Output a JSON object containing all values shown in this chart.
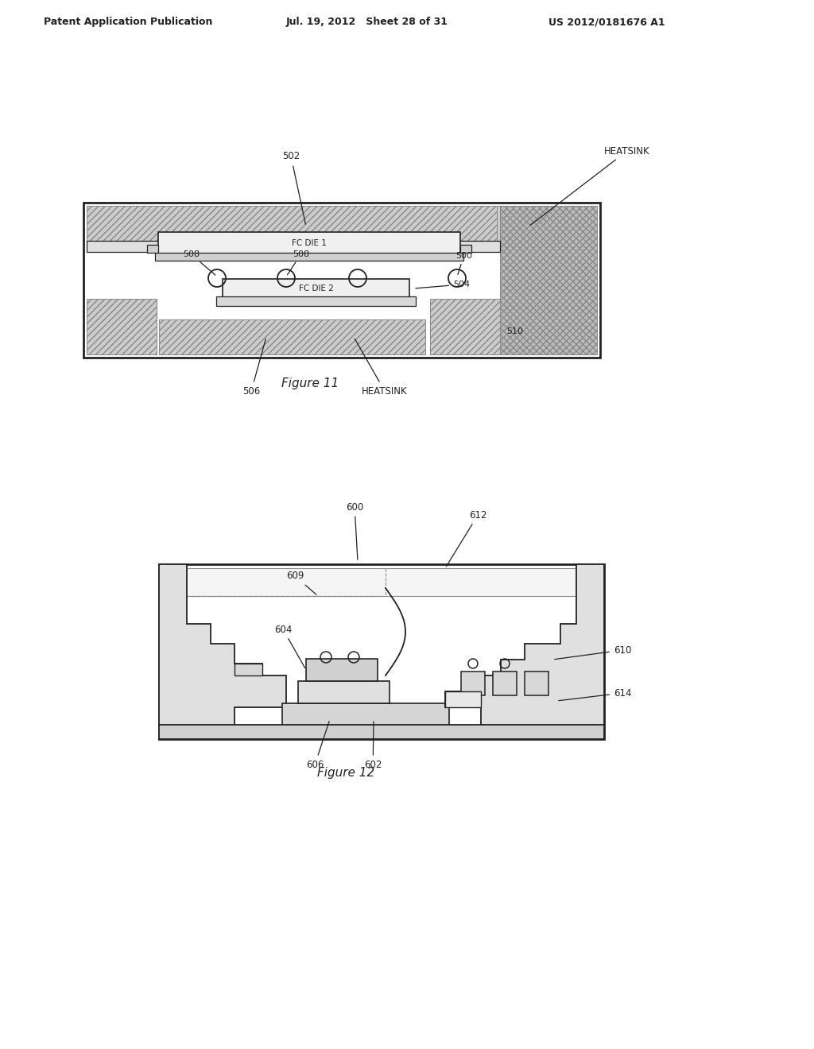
{
  "page_header_left": "Patent Application Publication",
  "page_header_mid": "Jul. 19, 2012   Sheet 28 of 31",
  "page_header_right": "US 2012/0181676 A1",
  "fig11_caption": "Figure 11",
  "fig12_caption": "Figure 12",
  "bg_color": "#ffffff",
  "lc": "#222222",
  "hc": "#888888",
  "fc_light": "#e8e8e8",
  "fc_mid": "#cccccc",
  "fc_dark": "#aaaaaa"
}
